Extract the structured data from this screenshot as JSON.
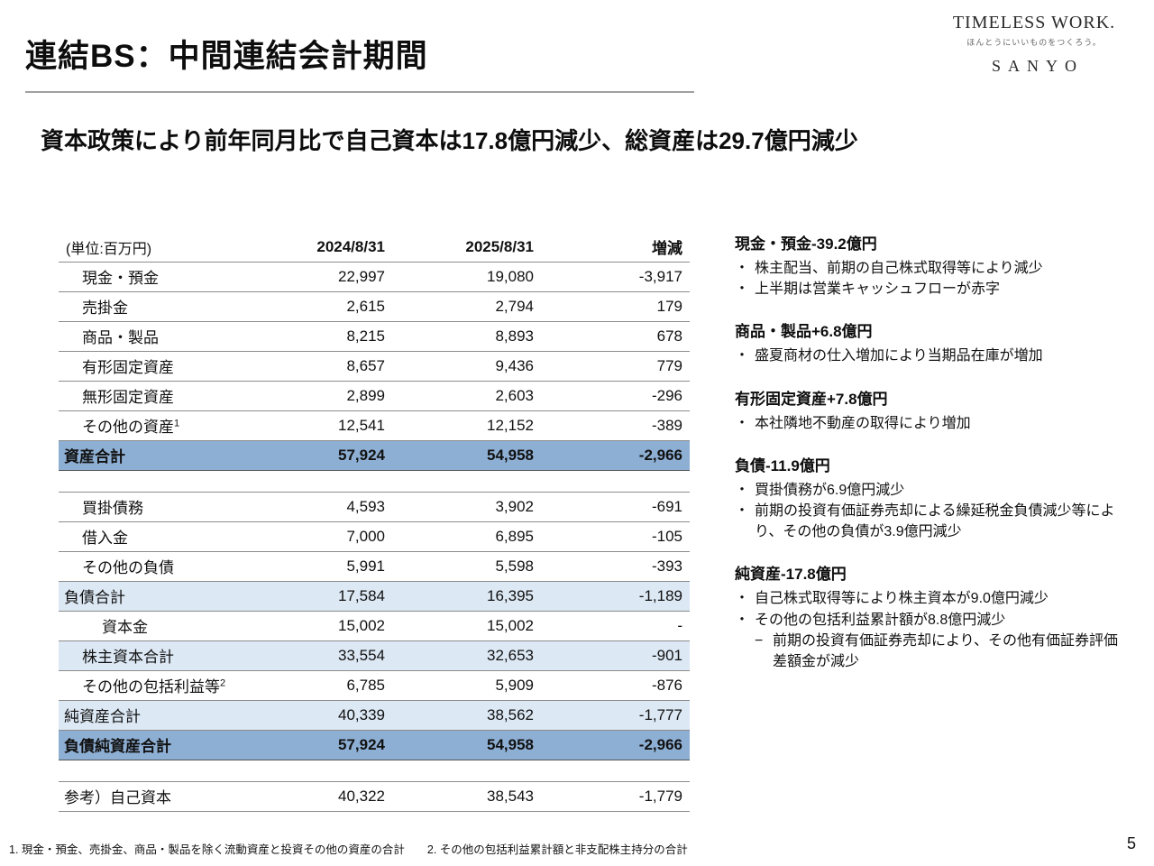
{
  "slide": {
    "title": "連結BS：中間連結会計期間",
    "subtitle": "資本政策により前年同月比で自己資本は17.8億円減少、総資産は29.7億円減少",
    "footnote": "1. 現金・預金、売掛金、商品・製品を除く流動資産と投資その他の資産の合計　　2. その他の包括利益累計額と非支配株主持分の合計",
    "page_number": "5"
  },
  "logo": {
    "brand": "TIMELESS WORK.",
    "tagline": "ほんとうにいいものをつくろう。",
    "company": "SANYO"
  },
  "markers": {
    "bullet": "・",
    "sub": "−"
  },
  "colors": {
    "total_row_bg": "#8EAFD4",
    "subtotal_row_bg": "#DCE8F4",
    "rule_line": "#8c8c8c"
  },
  "table": {
    "unit_label": "(単位:百万円)",
    "columns": [
      "2024/8/31",
      "2025/8/31",
      "増減"
    ],
    "rows": [
      {
        "label": "現金・預金",
        "v1": "22,997",
        "v2": "19,080",
        "diff": "-3,917",
        "style": "item",
        "indent": 1
      },
      {
        "label": "売掛金",
        "v1": "2,615",
        "v2": "2,794",
        "diff": "179",
        "style": "item",
        "indent": 1
      },
      {
        "label": "商品・製品",
        "v1": "8,215",
        "v2": "8,893",
        "diff": "678",
        "style": "item",
        "indent": 1
      },
      {
        "label": "有形固定資産",
        "v1": "8,657",
        "v2": "9,436",
        "diff": "779",
        "style": "item",
        "indent": 1
      },
      {
        "label": "無形固定資産",
        "v1": "2,899",
        "v2": "2,603",
        "diff": "-296",
        "style": "item",
        "indent": 1
      },
      {
        "label": "その他の資産",
        "sup": "1",
        "v1": "12,541",
        "v2": "12,152",
        "diff": "-389",
        "style": "item",
        "indent": 1
      },
      {
        "label": "資産合計",
        "v1": "57,924",
        "v2": "54,958",
        "diff": "-2,966",
        "style": "total-dark",
        "indent": 0
      },
      {
        "style": "spacer"
      },
      {
        "label": "買掛債務",
        "v1": "4,593",
        "v2": "3,902",
        "diff": "-691",
        "style": "item",
        "indent": 1
      },
      {
        "label": "借入金",
        "v1": "7,000",
        "v2": "6,895",
        "diff": "-105",
        "style": "item",
        "indent": 1
      },
      {
        "label": "その他の負債",
        "v1": "5,991",
        "v2": "5,598",
        "diff": "-393",
        "style": "item",
        "indent": 1
      },
      {
        "label": "負債合計",
        "v1": "17,584",
        "v2": "16,395",
        "diff": "-1,189",
        "style": "total-light",
        "indent": 0
      },
      {
        "label": "資本金",
        "v1": "15,002",
        "v2": "15,002",
        "diff": "-",
        "style": "item",
        "indent": 2
      },
      {
        "label": "株主資本合計",
        "v1": "33,554",
        "v2": "32,653",
        "diff": "-901",
        "style": "total-light",
        "indent": 1
      },
      {
        "label": "その他の包括利益等",
        "sup": "2",
        "v1": "6,785",
        "v2": "5,909",
        "diff": "-876",
        "style": "item",
        "indent": 1
      },
      {
        "label": "純資産合計",
        "v1": "40,339",
        "v2": "38,562",
        "diff": "-1,777",
        "style": "total-light",
        "indent": 0
      },
      {
        "label": "負債純資産合計",
        "v1": "57,924",
        "v2": "54,958",
        "diff": "-2,966",
        "style": "total-dark",
        "indent": 0
      },
      {
        "style": "spacer"
      },
      {
        "label": "参考）自己資本",
        "v1": "40,322",
        "v2": "38,543",
        "diff": "-1,779",
        "style": "reference",
        "indent": 0
      }
    ]
  },
  "annotations": [
    {
      "heading": "現金・預金-39.2億円",
      "items": [
        {
          "text": "株主配当、前期の自己株式取得等により減少",
          "sub": false
        },
        {
          "text": "上半期は営業キャッシュフローが赤字",
          "sub": false
        }
      ]
    },
    {
      "heading": "商品・製品+6.8億円",
      "items": [
        {
          "text": "盛夏商材の仕入増加により当期品在庫が増加",
          "sub": false
        }
      ]
    },
    {
      "heading": "有形固定資産+7.8億円",
      "items": [
        {
          "text": "本社隣地不動産の取得により増加",
          "sub": false
        }
      ]
    },
    {
      "heading": "負債-11.9億円",
      "items": [
        {
          "text": "買掛債務が6.9億円減少",
          "sub": false
        },
        {
          "text": "前期の投資有価証券売却による繰延税金負債減少等により、その他の負債が3.9億円減少",
          "sub": false
        }
      ]
    },
    {
      "heading": "純資産-17.8億円",
      "items": [
        {
          "text": "自己株式取得等により株主資本が9.0億円減少",
          "sub": false
        },
        {
          "text": "その他の包括利益累計額が8.8億円減少",
          "sub": false
        },
        {
          "text": "前期の投資有価証券売却により、その他有価証券評価差額金が減少",
          "sub": true
        }
      ]
    }
  ]
}
